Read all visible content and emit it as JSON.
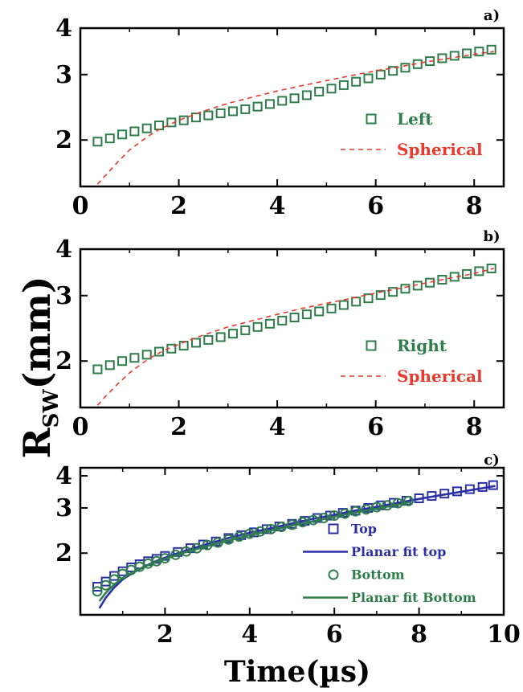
{
  "figure": {
    "ylabel_main": "R",
    "ylabel_sub": "SW",
    "ylabel_unit": "(mm)",
    "xlabel": "Time(µs)"
  },
  "colors": {
    "green": "#2e7d4a",
    "red": "#e8392c",
    "blue": "#2b2fa8"
  },
  "chart_data": [
    {
      "type": "scatter",
      "panel_label": "a)",
      "x_scale": "linear",
      "y_scale": "log",
      "xlim": [
        0,
        8.6
      ],
      "ylim": [
        1.5,
        4.0
      ],
      "xticks": [
        0,
        2,
        4,
        6,
        8
      ],
      "yticks": [
        2,
        3,
        4
      ],
      "legend": {
        "position": "center-right"
      },
      "series": [
        {
          "name": "Left",
          "kind": "markers",
          "marker": "square",
          "color": "#2e7d4a",
          "x": [
            0.35,
            0.6,
            0.85,
            1.1,
            1.35,
            1.6,
            1.85,
            2.1,
            2.35,
            2.6,
            2.85,
            3.1,
            3.35,
            3.6,
            3.85,
            4.1,
            4.35,
            4.6,
            4.85,
            5.1,
            5.35,
            5.6,
            5.85,
            6.1,
            6.35,
            6.6,
            6.85,
            7.1,
            7.35,
            7.6,
            7.85,
            8.1,
            8.35
          ],
          "y": [
            1.98,
            2.02,
            2.07,
            2.11,
            2.15,
            2.19,
            2.23,
            2.26,
            2.3,
            2.33,
            2.36,
            2.39,
            2.42,
            2.46,
            2.5,
            2.55,
            2.59,
            2.64,
            2.7,
            2.75,
            2.81,
            2.87,
            2.93,
            3.0,
            3.07,
            3.13,
            3.2,
            3.26,
            3.32,
            3.37,
            3.42,
            3.46,
            3.5
          ]
        },
        {
          "name": "Spherical",
          "kind": "dashed-line",
          "color": "#e8392c",
          "x": [
            0.35,
            0.5,
            0.75,
            1.0,
            1.25,
            1.5,
            1.75,
            2.0,
            2.5,
            3.0,
            3.5,
            4.0,
            4.5,
            5.0,
            5.5,
            6.0,
            6.5,
            7.0,
            7.5,
            8.0,
            8.4
          ],
          "y": [
            1.52,
            1.6,
            1.74,
            1.88,
            1.99,
            2.1,
            2.18,
            2.26,
            2.39,
            2.51,
            2.61,
            2.71,
            2.8,
            2.89,
            2.98,
            3.07,
            3.15,
            3.24,
            3.32,
            3.4,
            3.46
          ]
        }
      ]
    },
    {
      "type": "scatter",
      "panel_label": "b)",
      "x_scale": "linear",
      "y_scale": "log",
      "xlim": [
        0,
        8.6
      ],
      "ylim": [
        1.5,
        4.0
      ],
      "xticks": [
        0,
        2,
        4,
        6,
        8
      ],
      "yticks": [
        2,
        3,
        4
      ],
      "legend": {
        "position": "center-right"
      },
      "series": [
        {
          "name": "Right",
          "kind": "markers",
          "marker": "square",
          "color": "#2e7d4a",
          "x": [
            0.35,
            0.6,
            0.85,
            1.1,
            1.35,
            1.6,
            1.85,
            2.1,
            2.35,
            2.6,
            2.85,
            3.1,
            3.35,
            3.6,
            3.85,
            4.1,
            4.35,
            4.6,
            4.85,
            5.1,
            5.35,
            5.6,
            5.85,
            6.1,
            6.35,
            6.6,
            6.85,
            7.1,
            7.35,
            7.6,
            7.85,
            8.1,
            8.35
          ],
          "y": [
            1.9,
            1.95,
            2.0,
            2.04,
            2.08,
            2.12,
            2.16,
            2.2,
            2.24,
            2.28,
            2.32,
            2.37,
            2.42,
            2.47,
            2.52,
            2.57,
            2.62,
            2.67,
            2.72,
            2.77,
            2.83,
            2.89,
            2.95,
            3.01,
            3.07,
            3.13,
            3.19,
            3.25,
            3.31,
            3.37,
            3.43,
            3.49,
            3.55
          ]
        },
        {
          "name": "Spherical",
          "kind": "dashed-line",
          "color": "#e8392c",
          "x": [
            0.35,
            0.5,
            0.75,
            1.0,
            1.25,
            1.5,
            1.75,
            2.0,
            2.5,
            3.0,
            3.5,
            4.0,
            4.5,
            5.0,
            5.5,
            6.0,
            6.5,
            7.0,
            7.5,
            8.0,
            8.4
          ],
          "y": [
            1.52,
            1.6,
            1.73,
            1.86,
            1.97,
            2.07,
            2.15,
            2.22,
            2.35,
            2.47,
            2.57,
            2.67,
            2.77,
            2.86,
            2.95,
            3.05,
            3.14,
            3.24,
            3.34,
            3.44,
            3.55
          ]
        }
      ]
    },
    {
      "type": "scatter",
      "panel_label": "c)",
      "x_scale": "linear",
      "y_scale": "log",
      "xlim": [
        0,
        10.0
      ],
      "ylim": [
        1.15,
        4.3
      ],
      "xticks": [
        2,
        4,
        6,
        8,
        10
      ],
      "yticks": [
        2,
        3,
        4
      ],
      "legend": {
        "position": "lower-right"
      },
      "series": [
        {
          "name": "Top",
          "kind": "markers",
          "marker": "square",
          "color": "#2b2fa8",
          "x": [
            0.4,
            0.6,
            0.8,
            1.0,
            1.2,
            1.4,
            1.6,
            1.8,
            2.0,
            2.3,
            2.6,
            2.9,
            3.2,
            3.5,
            3.8,
            4.1,
            4.4,
            4.7,
            5.0,
            5.3,
            5.6,
            5.9,
            6.2,
            6.5,
            6.8,
            7.1,
            7.4,
            7.7,
            8.0,
            8.3,
            8.6,
            8.9,
            9.2,
            9.5,
            9.75
          ],
          "y": [
            1.48,
            1.55,
            1.63,
            1.7,
            1.76,
            1.81,
            1.86,
            1.9,
            1.95,
            2.02,
            2.09,
            2.16,
            2.22,
            2.29,
            2.35,
            2.41,
            2.48,
            2.54,
            2.6,
            2.67,
            2.74,
            2.8,
            2.87,
            2.93,
            3.0,
            3.07,
            3.14,
            3.2,
            3.27,
            3.34,
            3.41,
            3.48,
            3.55,
            3.62,
            3.68
          ]
        },
        {
          "name": "Planar fit top",
          "kind": "solid-line",
          "color": "#2b2fa8",
          "x": [
            0.45,
            0.6,
            0.8,
            1.0,
            1.25,
            1.5,
            1.75,
            2.0,
            2.5,
            3.0,
            3.5,
            4.0,
            4.5,
            5.0,
            5.5,
            6.0,
            6.5,
            7.0,
            7.5,
            8.0,
            8.5,
            9.0,
            9.5,
            9.8
          ],
          "y": [
            1.22,
            1.34,
            1.47,
            1.58,
            1.68,
            1.77,
            1.85,
            1.92,
            2.05,
            2.17,
            2.29,
            2.4,
            2.5,
            2.61,
            2.72,
            2.82,
            2.93,
            3.03,
            3.14,
            3.25,
            3.36,
            3.47,
            3.58,
            3.65
          ]
        },
        {
          "name": "Bottom",
          "kind": "markers",
          "marker": "circle",
          "color": "#2e7d4a",
          "x": [
            0.4,
            0.6,
            0.8,
            1.0,
            1.2,
            1.4,
            1.6,
            1.8,
            2.0,
            2.25,
            2.5,
            2.75,
            3.0,
            3.25,
            3.5,
            3.75,
            4.0,
            4.25,
            4.5,
            4.75,
            5.0,
            5.25,
            5.5,
            5.75,
            6.0,
            6.25,
            6.5,
            6.75,
            7.0,
            7.25,
            7.5,
            7.75
          ],
          "y": [
            1.42,
            1.5,
            1.58,
            1.66,
            1.72,
            1.77,
            1.82,
            1.86,
            1.91,
            1.97,
            2.03,
            2.09,
            2.15,
            2.2,
            2.26,
            2.32,
            2.38,
            2.43,
            2.48,
            2.53,
            2.58,
            2.64,
            2.69,
            2.74,
            2.8,
            2.85,
            2.91,
            2.96,
            3.02,
            3.07,
            3.13,
            3.19
          ]
        },
        {
          "name": "Planar fit Bottom",
          "kind": "solid-line",
          "color": "#2e7d4a",
          "x": [
            0.45,
            0.6,
            0.8,
            1.0,
            1.25,
            1.5,
            1.75,
            2.0,
            2.5,
            3.0,
            3.5,
            4.0,
            4.5,
            5.0,
            5.5,
            6.0,
            6.5,
            7.0,
            7.5,
            7.8
          ],
          "y": [
            1.3,
            1.4,
            1.51,
            1.6,
            1.69,
            1.77,
            1.84,
            1.9,
            2.02,
            2.13,
            2.24,
            2.35,
            2.45,
            2.56,
            2.66,
            2.77,
            2.88,
            2.98,
            3.09,
            3.16
          ]
        }
      ]
    }
  ]
}
